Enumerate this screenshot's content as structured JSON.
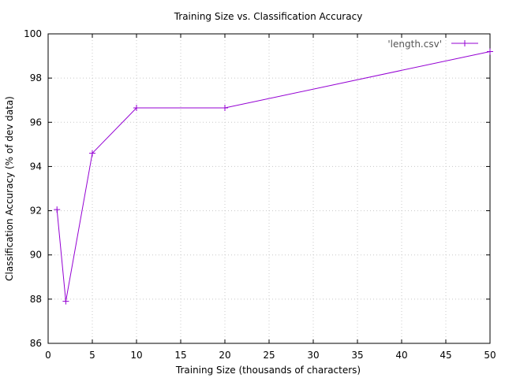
{
  "chart_data": {
    "type": "line",
    "title": "Training Size vs. Classification Accuracy",
    "xlabel": "Training Size (thousands of characters)",
    "ylabel": "Classification Accuracy (% of dev data)",
    "xlim": [
      0,
      50
    ],
    "ylim": [
      86,
      100
    ],
    "xticks": [
      0,
      5,
      10,
      15,
      20,
      25,
      30,
      35,
      40,
      45,
      50
    ],
    "yticks": [
      86,
      88,
      90,
      92,
      94,
      96,
      98,
      100
    ],
    "grid": true,
    "legend_position": "top-right",
    "series": [
      {
        "name": "'length.csv'",
        "color": "#9400d3",
        "marker": "plus",
        "x": [
          1,
          2,
          5,
          10,
          20,
          50
        ],
        "y": [
          92.05,
          87.9,
          94.6,
          96.65,
          96.65,
          99.2
        ]
      }
    ]
  }
}
